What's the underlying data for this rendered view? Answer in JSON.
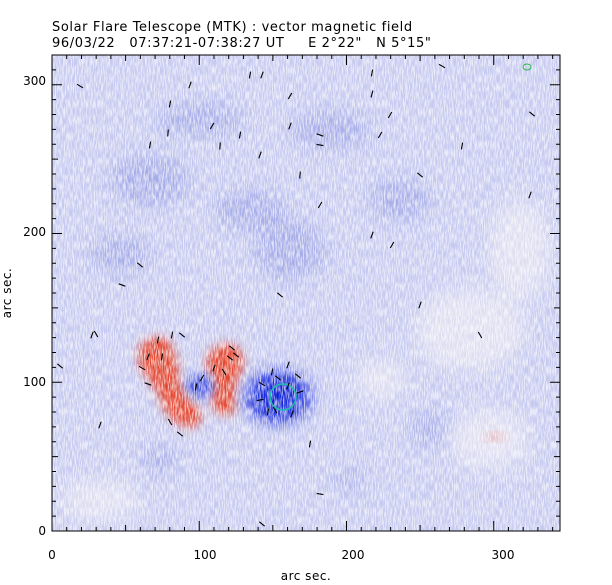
{
  "title_line1": "Solar Flare Telescope (MTK) : vector magnetic field",
  "title_line2": "96/03/22   07:37:21-07:38:27 UT     E 2°22\"   N 5°15\"",
  "xaxis": {
    "label": "arc sec.",
    "range": [
      0,
      345
    ],
    "ticks": [
      "0",
      "100",
      "200",
      "300"
    ]
  },
  "yaxis": {
    "label": "arc sec.",
    "range": [
      0,
      320
    ],
    "ticks": [
      "0",
      "100",
      "200",
      "300"
    ]
  },
  "colors": {
    "background_field": "#c9cdf2",
    "negative_polarity": "#1a2bd6",
    "positive_polarity": "#e0412b",
    "circle_marker": "#1fbfa8",
    "noise_tick": "#ffffff",
    "vector": "#000000"
  },
  "markers": {
    "positive_region_left": "positive-polarity",
    "positive_region_right": "positive-polarity",
    "negative_region": "negative-polarity",
    "circle": "green-circle-marker"
  }
}
